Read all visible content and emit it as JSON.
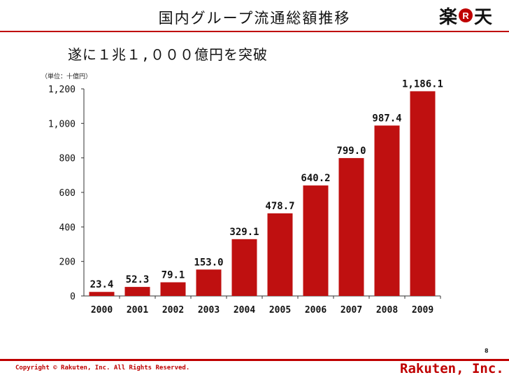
{
  "header": {
    "title": "国内グループ流通総額推移"
  },
  "logo": {
    "char_left": "楽",
    "mark": "R",
    "char_right": "天",
    "colors": {
      "brand": "#bf0000"
    }
  },
  "subtitle": "遂に１兆１,０００億円を突破",
  "footer": {
    "page_number": "8",
    "copyright": "Copyright © Rakuten, Inc. All Rights Reserved.",
    "company": "Rakuten, Inc."
  },
  "chart_data": {
    "type": "bar",
    "title": "国内グループ流通総額推移",
    "unit_label": "（単位：十億円）",
    "categories": [
      "2000",
      "2001",
      "2002",
      "2003",
      "2004",
      "2005",
      "2006",
      "2007",
      "2008",
      "2009"
    ],
    "values": [
      23.4,
      52.3,
      79.1,
      153.0,
      329.1,
      478.7,
      640.2,
      799.0,
      987.4,
      1186.1
    ],
    "value_labels": [
      "23.4",
      "52.3",
      "79.1",
      "153.0",
      "329.1",
      "478.7",
      "640.2",
      "799.0",
      "987.4",
      "1,186.1"
    ],
    "yticks": [
      0,
      200,
      400,
      600,
      800,
      1000,
      1200
    ],
    "ytick_labels": [
      "0",
      "200",
      "400",
      "600",
      "800",
      "1,000",
      "1,200"
    ],
    "ylim": [
      0,
      1200
    ],
    "bar_color": "#bf1010",
    "grid": false,
    "xlabel": "",
    "ylabel": ""
  }
}
